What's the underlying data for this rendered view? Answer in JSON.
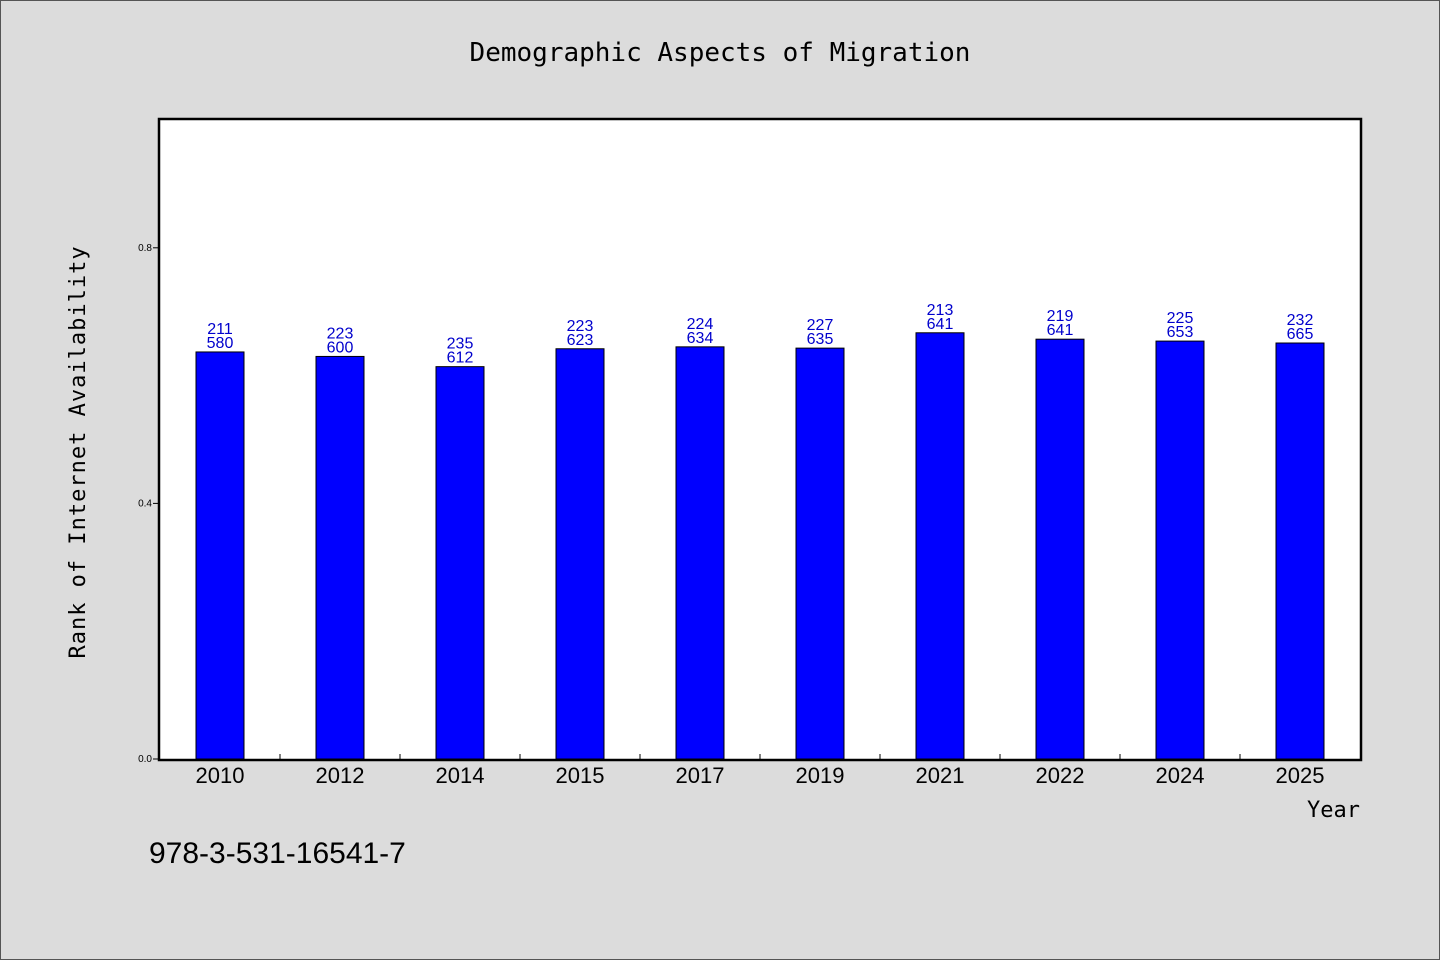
{
  "chart_data": {
    "type": "bar",
    "title": "Demographic Aspects of Migration",
    "xlabel": "Year",
    "ylabel": "Rank of Internet Availability",
    "categories": [
      "2010",
      "2012",
      "2014",
      "2015",
      "2017",
      "2019",
      "2021",
      "2022",
      "2024",
      "2025"
    ],
    "values": [
      0.637,
      0.63,
      0.614,
      0.642,
      0.645,
      0.643,
      0.667,
      0.657,
      0.654,
      0.651
    ],
    "data_labels_top": [
      "211",
      "223",
      "235",
      "223",
      "224",
      "227",
      "213",
      "219",
      "225",
      "232"
    ],
    "data_labels_bottom": [
      "580",
      "600",
      "612",
      "623",
      "634",
      "635",
      "641",
      "641",
      "653",
      "665"
    ],
    "ylim": [
      0,
      1.0
    ],
    "yticks": [
      "0.0",
      "0.4",
      "0.8"
    ],
    "grid": false,
    "colors": {
      "bar": "#0000ff",
      "bar_edge": "#000000",
      "label": "#0000cc",
      "background": "#dcdcdc",
      "plot_bg": "#ffffff"
    }
  },
  "annotation": "978-3-531-16541-7"
}
